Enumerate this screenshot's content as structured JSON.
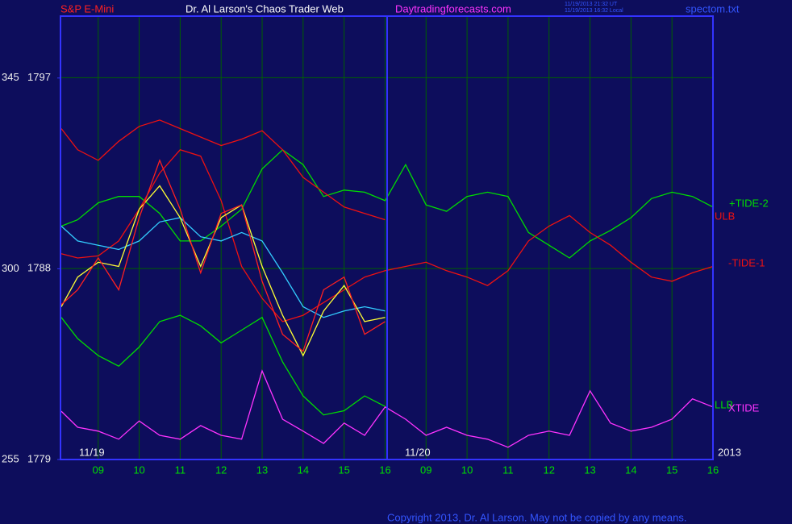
{
  "chart_data": {
    "type": "line",
    "title": "Dr. Al Larson's Chaos Trader Web",
    "instrument": "S&P E-Mini",
    "website": "Daytradingforecasts.com",
    "timestamps": [
      "11/19/2013 21:32 UT",
      "11/19/2013 16:32 Local"
    ],
    "file": "spectom.txt",
    "date_labels": [
      "11/19",
      "11/20",
      "2013"
    ],
    "copyright": "Copyright 2013, Dr. Al Larson. May not be copied by any means.",
    "x": [
      0.1,
      0.5,
      1,
      1.5,
      2,
      2.5,
      3,
      3.5,
      4,
      4.5,
      5,
      5.5,
      6,
      6.5,
      7,
      7.5,
      8,
      8.5,
      9,
      9.5,
      10,
      10.5,
      11,
      11.5,
      12,
      12.5,
      13,
      13.5,
      14,
      14.5,
      15,
      15.5,
      16
    ],
    "xlim": [
      0.08,
      16
    ],
    "xticks": [
      {
        "value": 1,
        "label": "09"
      },
      {
        "value": 2,
        "label": "10"
      },
      {
        "value": 3,
        "label": "11"
      },
      {
        "value": 4,
        "label": "12"
      },
      {
        "value": 5,
        "label": "13"
      },
      {
        "value": 6,
        "label": "14"
      },
      {
        "value": 7,
        "label": "15"
      },
      {
        "value": 8,
        "label": "16"
      },
      {
        "value": 9,
        "label": "09"
      },
      {
        "value": 10,
        "label": "10"
      },
      {
        "value": 11,
        "label": "11"
      },
      {
        "value": 12,
        "label": "12"
      },
      {
        "value": 13,
        "label": "13"
      },
      {
        "value": 14,
        "label": "14"
      },
      {
        "value": 15,
        "label": "15"
      },
      {
        "value": 16,
        "label": "16"
      }
    ],
    "ylim": [
      1779,
      1799.9
    ],
    "yticks": [
      1797,
      1788,
      1779
    ],
    "y2lim": [
      255,
      359.6
    ],
    "y2ticks": [
      345,
      300,
      255
    ],
    "grid": true,
    "series": [
      {
        "name": "+TIDE-2",
        "color": "#00dd00",
        "values": [
          1790.0,
          1790.3,
          1791.1,
          1791.4,
          1791.4,
          1790.6,
          1789.3,
          1789.3,
          1790.0,
          1790.8,
          1792.7,
          1793.6,
          1792.9,
          1791.4,
          1791.7,
          1791.6,
          1791.2,
          1792.9,
          1791.0,
          1790.7,
          1791.4,
          1791.6,
          1791.4,
          1789.7,
          1789.1,
          1788.5,
          1789.3,
          1789.8,
          1790.4,
          1791.3,
          1791.6,
          1791.4,
          1790.9
        ]
      },
      {
        "name": "ULB",
        "color": "#ee1111",
        "values": [
          1794.6,
          1793.6,
          1793.1,
          1794.0,
          1794.7,
          1795.0,
          1794.6,
          1794.2,
          1793.8,
          1794.1,
          1794.5,
          1793.6,
          1792.3,
          1791.6,
          1790.9,
          1790.6,
          1790.3,
          null,
          null,
          null,
          null,
          null,
          null,
          null,
          null,
          null,
          null,
          null,
          null,
          null,
          null,
          null,
          null
        ]
      },
      {
        "name": "-TIDE-1",
        "color": "#ee1111",
        "values": [
          1788.7,
          1788.5,
          1788.6,
          1789.3,
          1790.8,
          1792.5,
          1793.6,
          1793.3,
          1791.2,
          1788.1,
          1786.6,
          1785.5,
          1785.8,
          1786.4,
          1787.0,
          1787.6,
          1787.9,
          1788.1,
          1788.3,
          1787.9,
          1787.6,
          1787.2,
          1787.9,
          1789.3,
          1790.0,
          1790.5,
          1789.7,
          1789.1,
          1788.3,
          1787.6,
          1787.4,
          1787.8,
          1788.1
        ]
      },
      {
        "name": "LLB",
        "color": "#00dd00",
        "values": [
          1785.7,
          1784.7,
          1783.9,
          1783.4,
          1784.3,
          1785.5,
          1785.8,
          1785.3,
          1784.5,
          1785.1,
          1785.7,
          1783.6,
          1782.0,
          1781.1,
          1781.3,
          1782.0,
          1781.5,
          null,
          null,
          null,
          null,
          null,
          null,
          null,
          null,
          null,
          null,
          null,
          null,
          null,
          null,
          null,
          null
        ]
      },
      {
        "color": "#33ccff",
        "values": [
          1790.0,
          1789.3,
          1789.1,
          1788.9,
          1789.3,
          1790.2,
          1790.4,
          1789.5,
          1789.3,
          1789.7,
          1789.3,
          1787.8,
          1786.2,
          1785.7,
          1786.0,
          1786.2,
          1786.0,
          null,
          null,
          null,
          null,
          null,
          null,
          null,
          null,
          null,
          null,
          null,
          null,
          null,
          null,
          null,
          null
        ]
      },
      {
        "color": "#ffff33",
        "values": [
          1786.2,
          1787.6,
          1788.3,
          1788.1,
          1790.8,
          1791.9,
          1790.4,
          1788.1,
          1790.4,
          1791.0,
          1788.1,
          1785.8,
          1783.9,
          1786.0,
          1787.2,
          1785.5,
          1785.7,
          null,
          null,
          null,
          null,
          null,
          null,
          null,
          null,
          null,
          null,
          null,
          null,
          null,
          null,
          null,
          null
        ]
      },
      {
        "color": "#ff2020",
        "values": [
          1786.3,
          1787.0,
          1788.5,
          1787.0,
          1790.4,
          1793.1,
          1790.8,
          1787.8,
          1790.6,
          1791.0,
          1787.4,
          1784.9,
          1784.1,
          1787.0,
          1787.6,
          1784.9,
          1785.5,
          null,
          null,
          null,
          null,
          null,
          null,
          null,
          null,
          null,
          null,
          null,
          null,
          null,
          null,
          null,
          null
        ]
      },
      {
        "name": "XTIDE",
        "color": "#ff33ff",
        "axis": "y2",
        "values": [
          266.4,
          262.6,
          261.7,
          259.8,
          264.1,
          260.7,
          259.8,
          263.0,
          260.7,
          259.8,
          275.9,
          264.5,
          261.7,
          258.8,
          263.6,
          260.7,
          267.4,
          264.5,
          260.7,
          262.6,
          260.7,
          259.8,
          257.9,
          260.7,
          261.7,
          260.7,
          271.2,
          263.6,
          261.7,
          262.6,
          264.5,
          269.3,
          267.4
        ]
      }
    ]
  }
}
